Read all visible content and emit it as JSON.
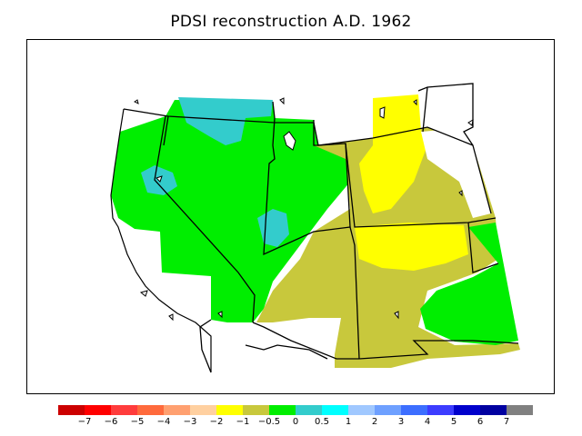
{
  "title": "PDSI reconstruction A.D. 1962",
  "colors": {
    "frame": "#000000",
    "map_green": "#00ee00",
    "map_olive": "#c8c83c",
    "map_yellow": "#ffff00",
    "map_cyan": "#33cccc",
    "map_aqua": "#00ffff",
    "background": "#ffffff"
  },
  "legend": {
    "swatches": [
      "#cc0000",
      "#ff0000",
      "#ff3c3c",
      "#ff6a3c",
      "#ffa070",
      "#ffd0a0",
      "#ffff00",
      "#c8c83c",
      "#00ee00",
      "#33cccc",
      "#00ffff",
      "#a0c8ff",
      "#6ea0ff",
      "#3c6eff",
      "#3c3cff",
      "#0000cc",
      "#0000a0",
      "#808080"
    ],
    "labels": [
      "−7",
      "−6",
      "−5",
      "−4",
      "−3",
      "−2",
      "−1",
      "−0.5",
      "0",
      "0.5",
      "1",
      "2",
      "3",
      "4",
      "5",
      "6",
      "7"
    ]
  }
}
